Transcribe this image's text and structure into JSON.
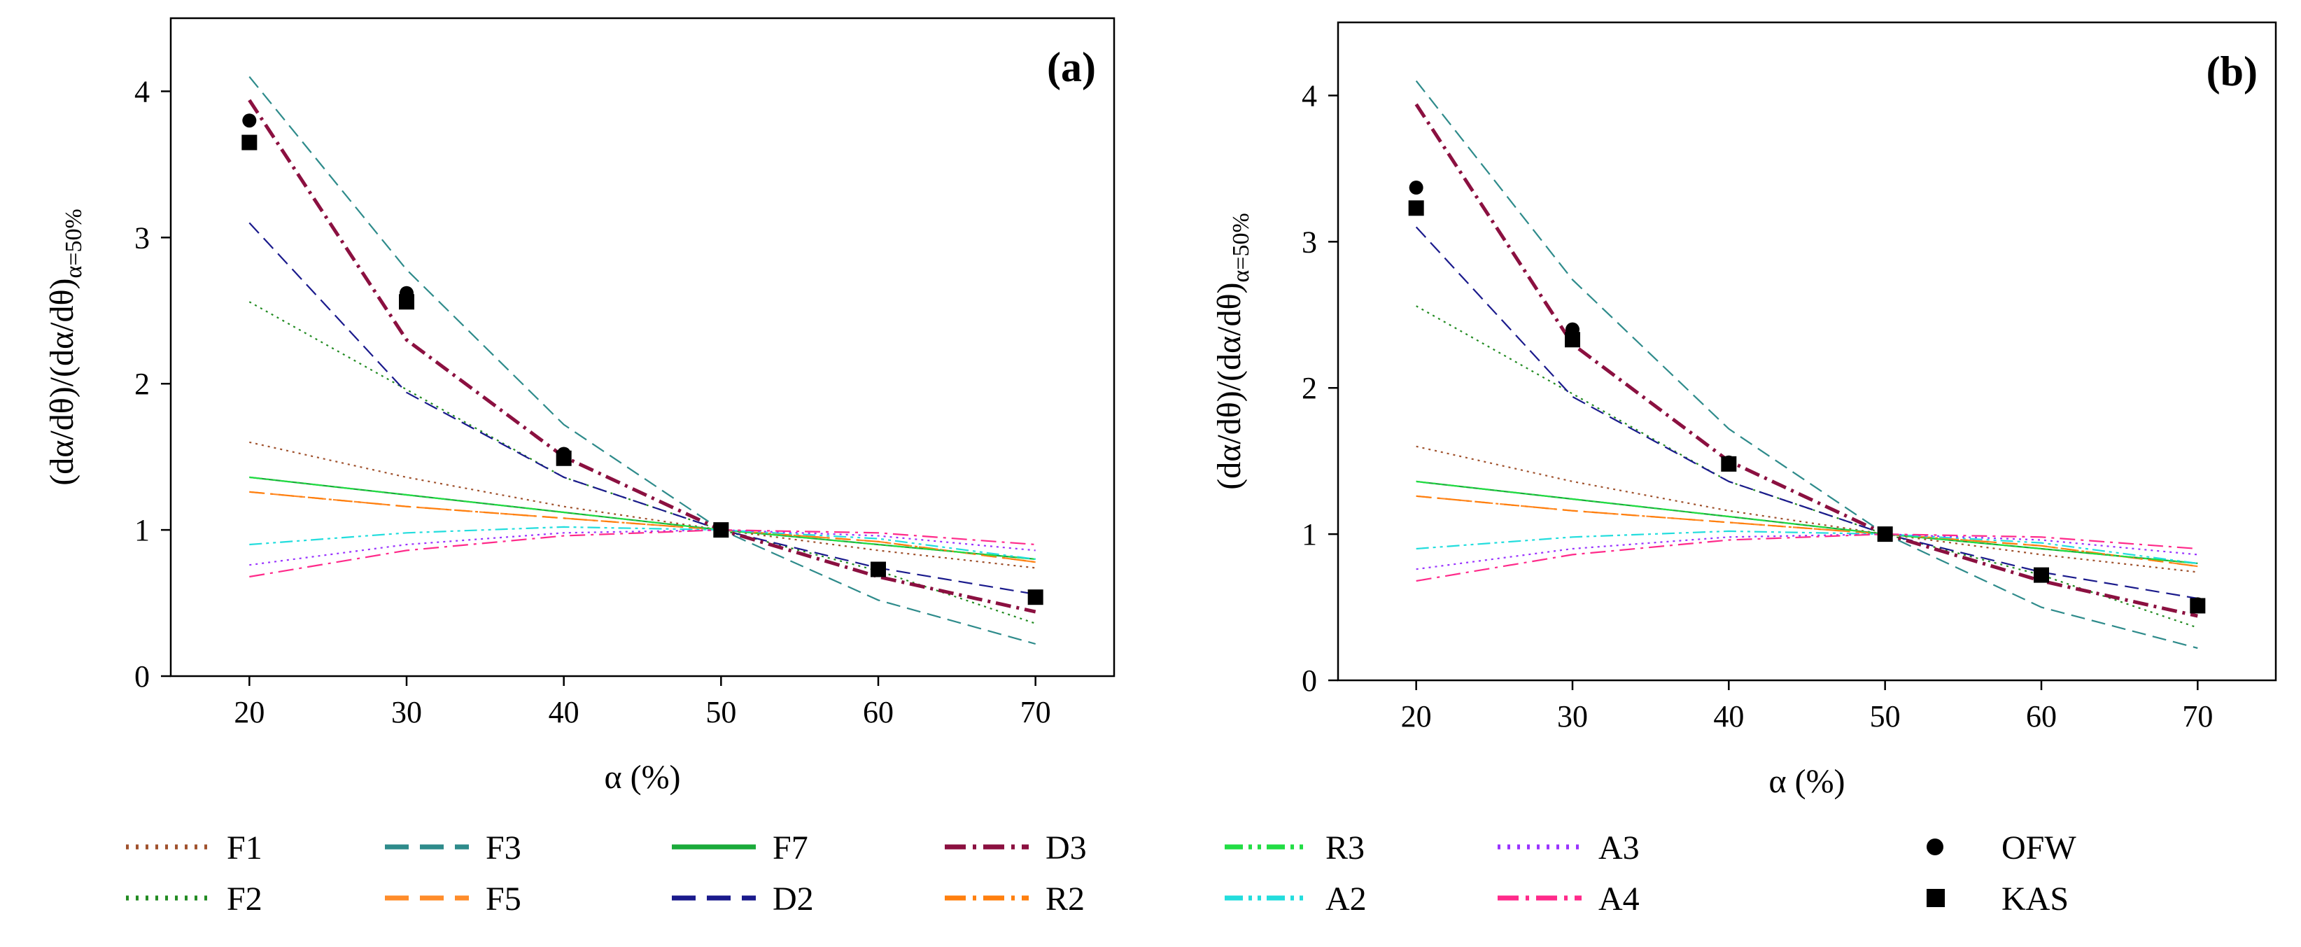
{
  "chart_data": [
    {
      "type": "line",
      "panel_label": "(a)",
      "xlabel": "α (%)",
      "ylabel_main": "(dα/dθ)/(dα/dθ)",
      "ylabel_sub": "α=50%",
      "xlim": [
        15,
        75
      ],
      "ylim": [
        0,
        4.5
      ],
      "xticks": [
        "20",
        "30",
        "40",
        "50",
        "60",
        "70"
      ],
      "yticks": [
        "0",
        "1",
        "2",
        "3",
        "4"
      ],
      "x": [
        20,
        30,
        40,
        50,
        60,
        70
      ],
      "series": [
        {
          "name": "F1",
          "values": [
            1.6,
            1.36,
            1.16,
            1.0,
            0.86,
            0.74
          ]
        },
        {
          "name": "F2",
          "values": [
            2.56,
            1.96,
            1.36,
            1.0,
            0.72,
            0.36
          ]
        },
        {
          "name": "F3",
          "values": [
            4.1,
            2.78,
            1.72,
            1.0,
            0.52,
            0.22
          ]
        },
        {
          "name": "F5",
          "values": [
            1.26,
            1.16,
            1.08,
            1.0,
            0.92,
            0.78
          ]
        },
        {
          "name": "F7",
          "values": [
            1.36,
            1.24,
            1.12,
            1.0,
            0.9,
            0.8
          ]
        },
        {
          "name": "D2",
          "values": [
            3.1,
            1.94,
            1.36,
            1.0,
            0.74,
            0.56
          ]
        },
        {
          "name": "D3",
          "values": [
            3.94,
            2.3,
            1.5,
            1.0,
            0.68,
            0.44
          ]
        },
        {
          "name": "R2",
          "values": [
            1.26,
            1.16,
            1.08,
            1.0,
            0.92,
            0.78
          ]
        },
        {
          "name": "R3",
          "values": [
            1.36,
            1.24,
            1.12,
            1.0,
            0.9,
            0.8
          ]
        },
        {
          "name": "A2",
          "values": [
            0.9,
            0.98,
            1.02,
            1.0,
            0.94,
            0.8
          ]
        },
        {
          "name": "A3",
          "values": [
            0.76,
            0.9,
            0.98,
            1.0,
            0.96,
            0.86
          ]
        },
        {
          "name": "A4",
          "values": [
            0.68,
            0.86,
            0.96,
            1.0,
            0.98,
            0.9
          ]
        }
      ],
      "points": [
        {
          "name": "OFW",
          "x": [
            20,
            30,
            40,
            50,
            60,
            70
          ],
          "y": [
            3.8,
            2.62,
            1.52,
            1.0,
            0.73,
            0.54
          ]
        },
        {
          "name": "KAS",
          "x": [
            20,
            30,
            40,
            50,
            60,
            70
          ],
          "y": [
            3.65,
            2.56,
            1.49,
            1.0,
            0.73,
            0.54
          ]
        }
      ]
    },
    {
      "type": "line",
      "panel_label": "(b)",
      "xlabel": "α (%)",
      "ylabel_main": "(dα/dθ)/(dα/dθ)",
      "ylabel_sub": "α=50%",
      "xlim": [
        15,
        75
      ],
      "ylim": [
        0,
        4.5
      ],
      "xticks": [
        "20",
        "30",
        "40",
        "50",
        "60",
        "70"
      ],
      "yticks": [
        "0",
        "1",
        "2",
        "3",
        "4"
      ],
      "x": [
        20,
        30,
        40,
        50,
        60,
        70
      ],
      "series": [
        {
          "name": "F1",
          "values": [
            1.6,
            1.36,
            1.16,
            1.0,
            0.86,
            0.74
          ]
        },
        {
          "name": "F2",
          "values": [
            2.56,
            1.96,
            1.36,
            1.0,
            0.72,
            0.36
          ]
        },
        {
          "name": "F3",
          "values": [
            4.1,
            2.74,
            1.72,
            1.0,
            0.5,
            0.22
          ]
        },
        {
          "name": "F5",
          "values": [
            1.26,
            1.16,
            1.08,
            1.0,
            0.92,
            0.78
          ]
        },
        {
          "name": "F7",
          "values": [
            1.36,
            1.24,
            1.12,
            1.0,
            0.9,
            0.8
          ]
        },
        {
          "name": "D2",
          "values": [
            3.1,
            1.94,
            1.36,
            1.0,
            0.74,
            0.56
          ]
        },
        {
          "name": "D3",
          "values": [
            3.94,
            2.3,
            1.5,
            1.0,
            0.68,
            0.44
          ]
        },
        {
          "name": "R2",
          "values": [
            1.26,
            1.16,
            1.08,
            1.0,
            0.92,
            0.78
          ]
        },
        {
          "name": "R3",
          "values": [
            1.36,
            1.24,
            1.12,
            1.0,
            0.9,
            0.8
          ]
        },
        {
          "name": "A2",
          "values": [
            0.9,
            0.98,
            1.02,
            1.0,
            0.94,
            0.8
          ]
        },
        {
          "name": "A3",
          "values": [
            0.76,
            0.9,
            0.98,
            1.0,
            0.96,
            0.86
          ]
        },
        {
          "name": "A4",
          "values": [
            0.68,
            0.86,
            0.96,
            1.0,
            0.98,
            0.9
          ]
        }
      ],
      "points": [
        {
          "name": "OFW",
          "x": [
            20,
            30,
            40,
            50,
            60,
            70
          ],
          "y": [
            3.37,
            2.4,
            1.49,
            1.0,
            0.72,
            0.52
          ]
        },
        {
          "name": "KAS",
          "x": [
            20,
            30,
            40,
            50,
            60,
            70
          ],
          "y": [
            3.23,
            2.33,
            1.48,
            1.0,
            0.72,
            0.51
          ]
        }
      ]
    }
  ],
  "legend": {
    "items": [
      {
        "name": "F1",
        "color": "#a0522d",
        "style": "dotted"
      },
      {
        "name": "F3",
        "color": "#2e8b8b",
        "style": "dashed"
      },
      {
        "name": "F7",
        "color": "#1aaa3a",
        "style": "solid"
      },
      {
        "name": "D3",
        "color": "#8b1040",
        "style": "dashdot"
      },
      {
        "name": "R3",
        "color": "#22dd44",
        "style": "dashdotdot"
      },
      {
        "name": "A3",
        "color": "#9933ff",
        "style": "dotted"
      },
      {
        "name": "OFW",
        "color": "#000000",
        "style": "circle"
      },
      {
        "name": "F2",
        "color": "#228b22",
        "style": "dotted"
      },
      {
        "name": "F5",
        "color": "#ff8c2a",
        "style": "dashed"
      },
      {
        "name": "D2",
        "color": "#1a1a8c",
        "style": "dashed"
      },
      {
        "name": "R2",
        "color": "#ff7f0e",
        "style": "dashdot"
      },
      {
        "name": "A2",
        "color": "#22dddd",
        "style": "dashdotdot"
      },
      {
        "name": "A4",
        "color": "#ff2a8a",
        "style": "dashdot"
      },
      {
        "name": "KAS",
        "color": "#000000",
        "style": "square"
      }
    ]
  }
}
